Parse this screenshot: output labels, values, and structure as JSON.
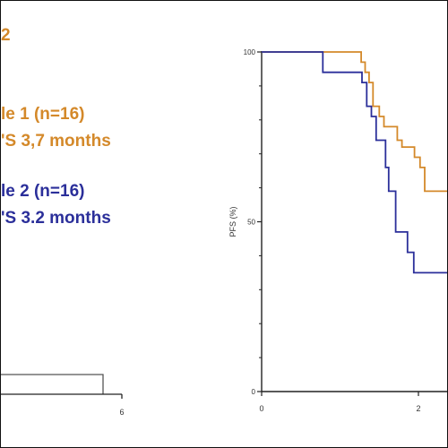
{
  "annotations": {
    "top_fragment": "2",
    "cohort1_line1": "le 1 (n=16)",
    "cohort1_line2": "'S 3,7 months",
    "cohort2_line1": "le 2 (n=16)",
    "cohort2_line2": "'S 3.2 months"
  },
  "colors": {
    "cohort1": "#d4892a",
    "cohort2": "#2b2f9a",
    "axis": "#222222",
    "left_fragment_line": "#555555"
  },
  "left_fragment_axis": {
    "tick_label": "6"
  },
  "chart_data": {
    "type": "line",
    "title": "",
    "xlabel": "",
    "ylabel": "PFS (%)",
    "xlim": [
      0,
      4.2
    ],
    "ylim": [
      0,
      100
    ],
    "x_ticks": [
      0,
      2
    ],
    "x_tick_labels": [
      "0",
      "2"
    ],
    "y_ticks": [
      0,
      50,
      100
    ],
    "y_tick_labels": [
      "0",
      "50",
      "100"
    ],
    "legend": "none",
    "step": true,
    "series": [
      {
        "name": "",
        "color_key": "cohort1",
        "points": [
          [
            0,
            100
          ],
          [
            1.27,
            100
          ],
          [
            1.27,
            97
          ],
          [
            1.32,
            97
          ],
          [
            1.32,
            94
          ],
          [
            1.37,
            94
          ],
          [
            1.37,
            91
          ],
          [
            1.42,
            91
          ],
          [
            1.42,
            84
          ],
          [
            1.5,
            84
          ],
          [
            1.5,
            81
          ],
          [
            1.56,
            81
          ],
          [
            1.56,
            78
          ],
          [
            1.73,
            78
          ],
          [
            1.73,
            74
          ],
          [
            1.79,
            74
          ],
          [
            1.79,
            72
          ],
          [
            1.95,
            72
          ],
          [
            1.95,
            69
          ],
          [
            2.02,
            69
          ],
          [
            2.02,
            66
          ],
          [
            2.08,
            66
          ],
          [
            2.08,
            59
          ],
          [
            2.42,
            59
          ]
        ]
      },
      {
        "name": "",
        "color_key": "cohort2",
        "points": [
          [
            0,
            100
          ],
          [
            0.78,
            100
          ],
          [
            0.78,
            94
          ],
          [
            1.28,
            94
          ],
          [
            1.28,
            91
          ],
          [
            1.34,
            91
          ],
          [
            1.34,
            84
          ],
          [
            1.4,
            84
          ],
          [
            1.4,
            81
          ],
          [
            1.46,
            81
          ],
          [
            1.46,
            74
          ],
          [
            1.58,
            74
          ],
          [
            1.58,
            66
          ],
          [
            1.62,
            66
          ],
          [
            1.62,
            59
          ],
          [
            1.71,
            59
          ],
          [
            1.71,
            47
          ],
          [
            1.86,
            47
          ],
          [
            1.86,
            41
          ],
          [
            1.94,
            41
          ],
          [
            1.94,
            35
          ],
          [
            2.38,
            35
          ],
          [
            2.38,
            23
          ],
          [
            2.42,
            23
          ]
        ]
      }
    ]
  }
}
